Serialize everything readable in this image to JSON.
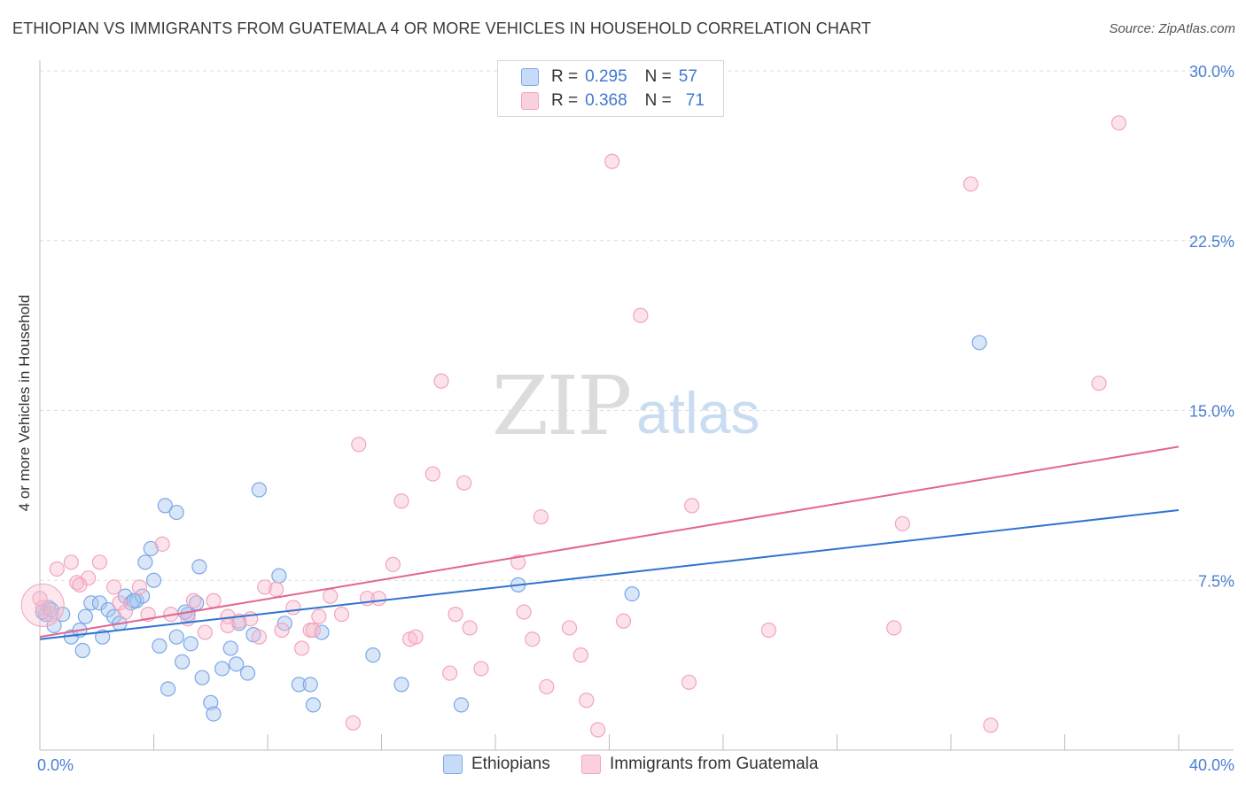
{
  "header": {
    "title": "ETHIOPIAN VS IMMIGRANTS FROM GUATEMALA 4 OR MORE VEHICLES IN HOUSEHOLD CORRELATION CHART",
    "source": "Source: ZipAtlas.com"
  },
  "watermark": {
    "zip": "ZIP",
    "atlas": "atlas"
  },
  "legend": {
    "rows": [
      {
        "r_label": "R =",
        "r_value": "0.295",
        "n_label": "N =",
        "n_value": "57",
        "color": "#a9c8f0"
      },
      {
        "r_label": "R =",
        "r_value": "0.368",
        "n_label": "N =",
        "n_value": "71",
        "color": "#f7b9cc"
      }
    ]
  },
  "bottom_legend": {
    "series1": "Ethiopians",
    "series2": "Immigrants from Guatemala"
  },
  "chart_data": {
    "type": "scatter",
    "title": "ETHIOPIAN VS IMMIGRANTS FROM GUATEMALA 4 OR MORE VEHICLES IN HOUSEHOLD CORRELATION CHART",
    "xlabel": "",
    "ylabel": "4 or more Vehicles in Household",
    "xlim": [
      0,
      40
    ],
    "ylim": [
      0,
      30
    ],
    "x_tick_labels": [
      "0.0%",
      "40.0%"
    ],
    "y_ticks": [
      7.5,
      15.0,
      22.5,
      30.0
    ],
    "y_tick_labels": [
      "7.5%",
      "15.0%",
      "22.5%",
      "30.0%"
    ],
    "grid": "horizontal dashed",
    "legend_position": "top-center",
    "series": [
      {
        "name": "Ethiopians",
        "color": "#7aa8e6",
        "line_color": "#2f74d0",
        "trend": {
          "x": [
            0,
            40
          ],
          "y": [
            4.9,
            10.6
          ]
        },
        "points": [
          [
            0.2,
            6.0
          ],
          [
            0.3,
            6.3
          ],
          [
            0.5,
            5.5
          ],
          [
            0.8,
            6.0
          ],
          [
            1.1,
            5.0
          ],
          [
            1.4,
            5.3
          ],
          [
            1.6,
            5.9
          ],
          [
            1.5,
            4.4
          ],
          [
            1.8,
            6.5
          ],
          [
            2.2,
            5.0
          ],
          [
            2.1,
            6.5
          ],
          [
            2.4,
            6.2
          ],
          [
            2.6,
            5.9
          ],
          [
            2.8,
            5.6
          ],
          [
            3.0,
            6.8
          ],
          [
            3.2,
            6.5
          ],
          [
            3.4,
            6.6
          ],
          [
            3.6,
            6.8
          ],
          [
            3.7,
            8.3
          ],
          [
            3.9,
            8.9
          ],
          [
            4.0,
            7.5
          ],
          [
            4.2,
            4.6
          ],
          [
            4.4,
            10.8
          ],
          [
            4.5,
            2.7
          ],
          [
            4.8,
            10.5
          ],
          [
            4.8,
            5.0
          ],
          [
            5.0,
            3.9
          ],
          [
            5.2,
            6.0
          ],
          [
            5.3,
            4.7
          ],
          [
            5.5,
            6.5
          ],
          [
            5.6,
            8.1
          ],
          [
            5.7,
            3.2
          ],
          [
            6.0,
            2.1
          ],
          [
            6.1,
            1.6
          ],
          [
            6.4,
            3.6
          ],
          [
            6.7,
            4.5
          ],
          [
            6.9,
            3.8
          ],
          [
            7.0,
            5.6
          ],
          [
            7.3,
            3.4
          ],
          [
            7.5,
            5.1
          ],
          [
            7.7,
            11.5
          ],
          [
            8.4,
            7.7
          ],
          [
            8.6,
            5.6
          ],
          [
            9.1,
            2.9
          ],
          [
            9.5,
            2.9
          ],
          [
            9.6,
            2.0
          ],
          [
            9.9,
            5.2
          ],
          [
            11.7,
            4.2
          ],
          [
            12.7,
            2.9
          ],
          [
            14.8,
            2.0
          ],
          [
            16.8,
            7.3
          ],
          [
            20.8,
            6.9
          ],
          [
            33.0,
            18.0
          ],
          [
            0.1,
            6.1
          ],
          [
            0.4,
            6.2
          ],
          [
            3.3,
            6.6
          ],
          [
            5.1,
            6.1
          ]
        ]
      },
      {
        "name": "Immigrants from Guatemala",
        "color": "#f3a3bd",
        "line_color": "#e06690",
        "trend": {
          "x": [
            0,
            40
          ],
          "y": [
            5.0,
            13.4
          ]
        },
        "points": [
          [
            0.1,
            6.3
          ],
          [
            0.4,
            6.0
          ],
          [
            0.6,
            8.0
          ],
          [
            1.1,
            8.3
          ],
          [
            1.3,
            7.4
          ],
          [
            1.7,
            7.6
          ],
          [
            2.1,
            8.3
          ],
          [
            2.6,
            7.2
          ],
          [
            2.8,
            6.5
          ],
          [
            3.0,
            6.1
          ],
          [
            3.5,
            7.2
          ],
          [
            3.8,
            6.0
          ],
          [
            4.3,
            9.1
          ],
          [
            4.6,
            6.0
          ],
          [
            5.2,
            5.8
          ],
          [
            5.4,
            6.6
          ],
          [
            5.8,
            5.2
          ],
          [
            6.1,
            6.6
          ],
          [
            6.6,
            5.9
          ],
          [
            7.0,
            5.7
          ],
          [
            7.4,
            5.8
          ],
          [
            7.7,
            5.0
          ],
          [
            7.9,
            7.2
          ],
          [
            8.3,
            7.1
          ],
          [
            8.5,
            5.3
          ],
          [
            8.9,
            6.3
          ],
          [
            9.2,
            4.5
          ],
          [
            9.5,
            5.3
          ],
          [
            9.8,
            5.9
          ],
          [
            10.2,
            6.8
          ],
          [
            10.6,
            6.0
          ],
          [
            11.0,
            1.2
          ],
          [
            11.2,
            13.5
          ],
          [
            11.5,
            6.7
          ],
          [
            11.9,
            6.7
          ],
          [
            12.4,
            8.2
          ],
          [
            12.7,
            11.0
          ],
          [
            13.0,
            4.9
          ],
          [
            13.2,
            5.0
          ],
          [
            13.8,
            12.2
          ],
          [
            14.1,
            16.3
          ],
          [
            14.4,
            3.4
          ],
          [
            14.6,
            6.0
          ],
          [
            14.9,
            11.8
          ],
          [
            15.1,
            5.4
          ],
          [
            15.5,
            3.6
          ],
          [
            16.8,
            8.3
          ],
          [
            17.0,
            6.1
          ],
          [
            17.3,
            4.9
          ],
          [
            17.6,
            10.3
          ],
          [
            17.8,
            2.8
          ],
          [
            18.6,
            5.4
          ],
          [
            19.0,
            4.2
          ],
          [
            19.2,
            2.2
          ],
          [
            19.6,
            0.9
          ],
          [
            20.1,
            26.0
          ],
          [
            20.5,
            5.7
          ],
          [
            21.1,
            19.2
          ],
          [
            22.9,
            10.8
          ],
          [
            22.8,
            3.0
          ],
          [
            25.6,
            5.3
          ],
          [
            30.0,
            5.4
          ],
          [
            30.3,
            10.0
          ],
          [
            32.7,
            25.0
          ],
          [
            33.4,
            1.1
          ],
          [
            37.2,
            16.2
          ],
          [
            37.9,
            27.7
          ],
          [
            0.0,
            6.7
          ],
          [
            1.4,
            7.3
          ],
          [
            6.6,
            5.5
          ],
          [
            9.6,
            5.3
          ]
        ]
      }
    ]
  }
}
